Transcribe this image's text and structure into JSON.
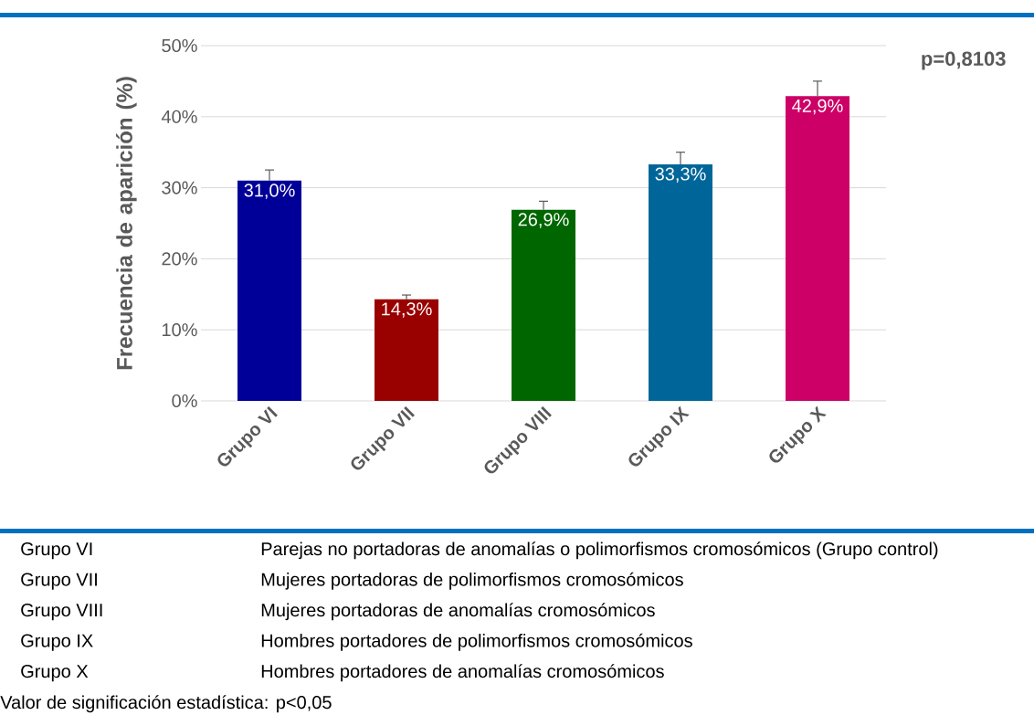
{
  "chart_data": {
    "type": "bar",
    "ylabel": "Frecuencia de aparición (%)",
    "categories": [
      "Grupo VI",
      "Grupo VII",
      "Grupo VIII",
      "Grupo IX",
      "Grupo X"
    ],
    "values": [
      31.0,
      14.3,
      26.9,
      33.3,
      42.9
    ],
    "value_labels": [
      "31,0%",
      "14,3%",
      "26,9%",
      "33,3%",
      "42,9%"
    ],
    "colors": [
      "#000099",
      "#990000",
      "#006600",
      "#006699",
      "#cc0066"
    ],
    "errors": [
      [
        31.0,
        32.5
      ],
      [
        14.3,
        14.9
      ],
      [
        26.9,
        28.1
      ],
      [
        33.3,
        35.0
      ],
      [
        42.9,
        45.0
      ]
    ],
    "ylim": [
      0,
      50
    ],
    "yticks": [
      {
        "value": 0,
        "label": "0%"
      },
      {
        "value": 10,
        "label": "10%"
      },
      {
        "value": 20,
        "label": "20%"
      },
      {
        "value": 30,
        "label": "30%"
      },
      {
        "value": 40,
        "label": "40%"
      },
      {
        "value": 50,
        "label": "50%"
      }
    ],
    "grid": "y",
    "annotations": [
      "p=0,8103",
      "Grupo VI",
      "Parejas no portadoras de anomalías o polimorfismos cromosómicos (Grupo control)",
      "Grupo VII",
      "Mujeres portadoras de polimorfismos cromosómicos",
      "Grupo VIII",
      "Mujeres portadoras de anomalías cromosómicos",
      "Grupo IX",
      "Hombres portadores de polimorfismos cromosómicos",
      "Grupo X",
      "Hombres portadores de anomalías cromosómicos",
      "Valor de significación estadística: p<0,05"
    ]
  }
}
